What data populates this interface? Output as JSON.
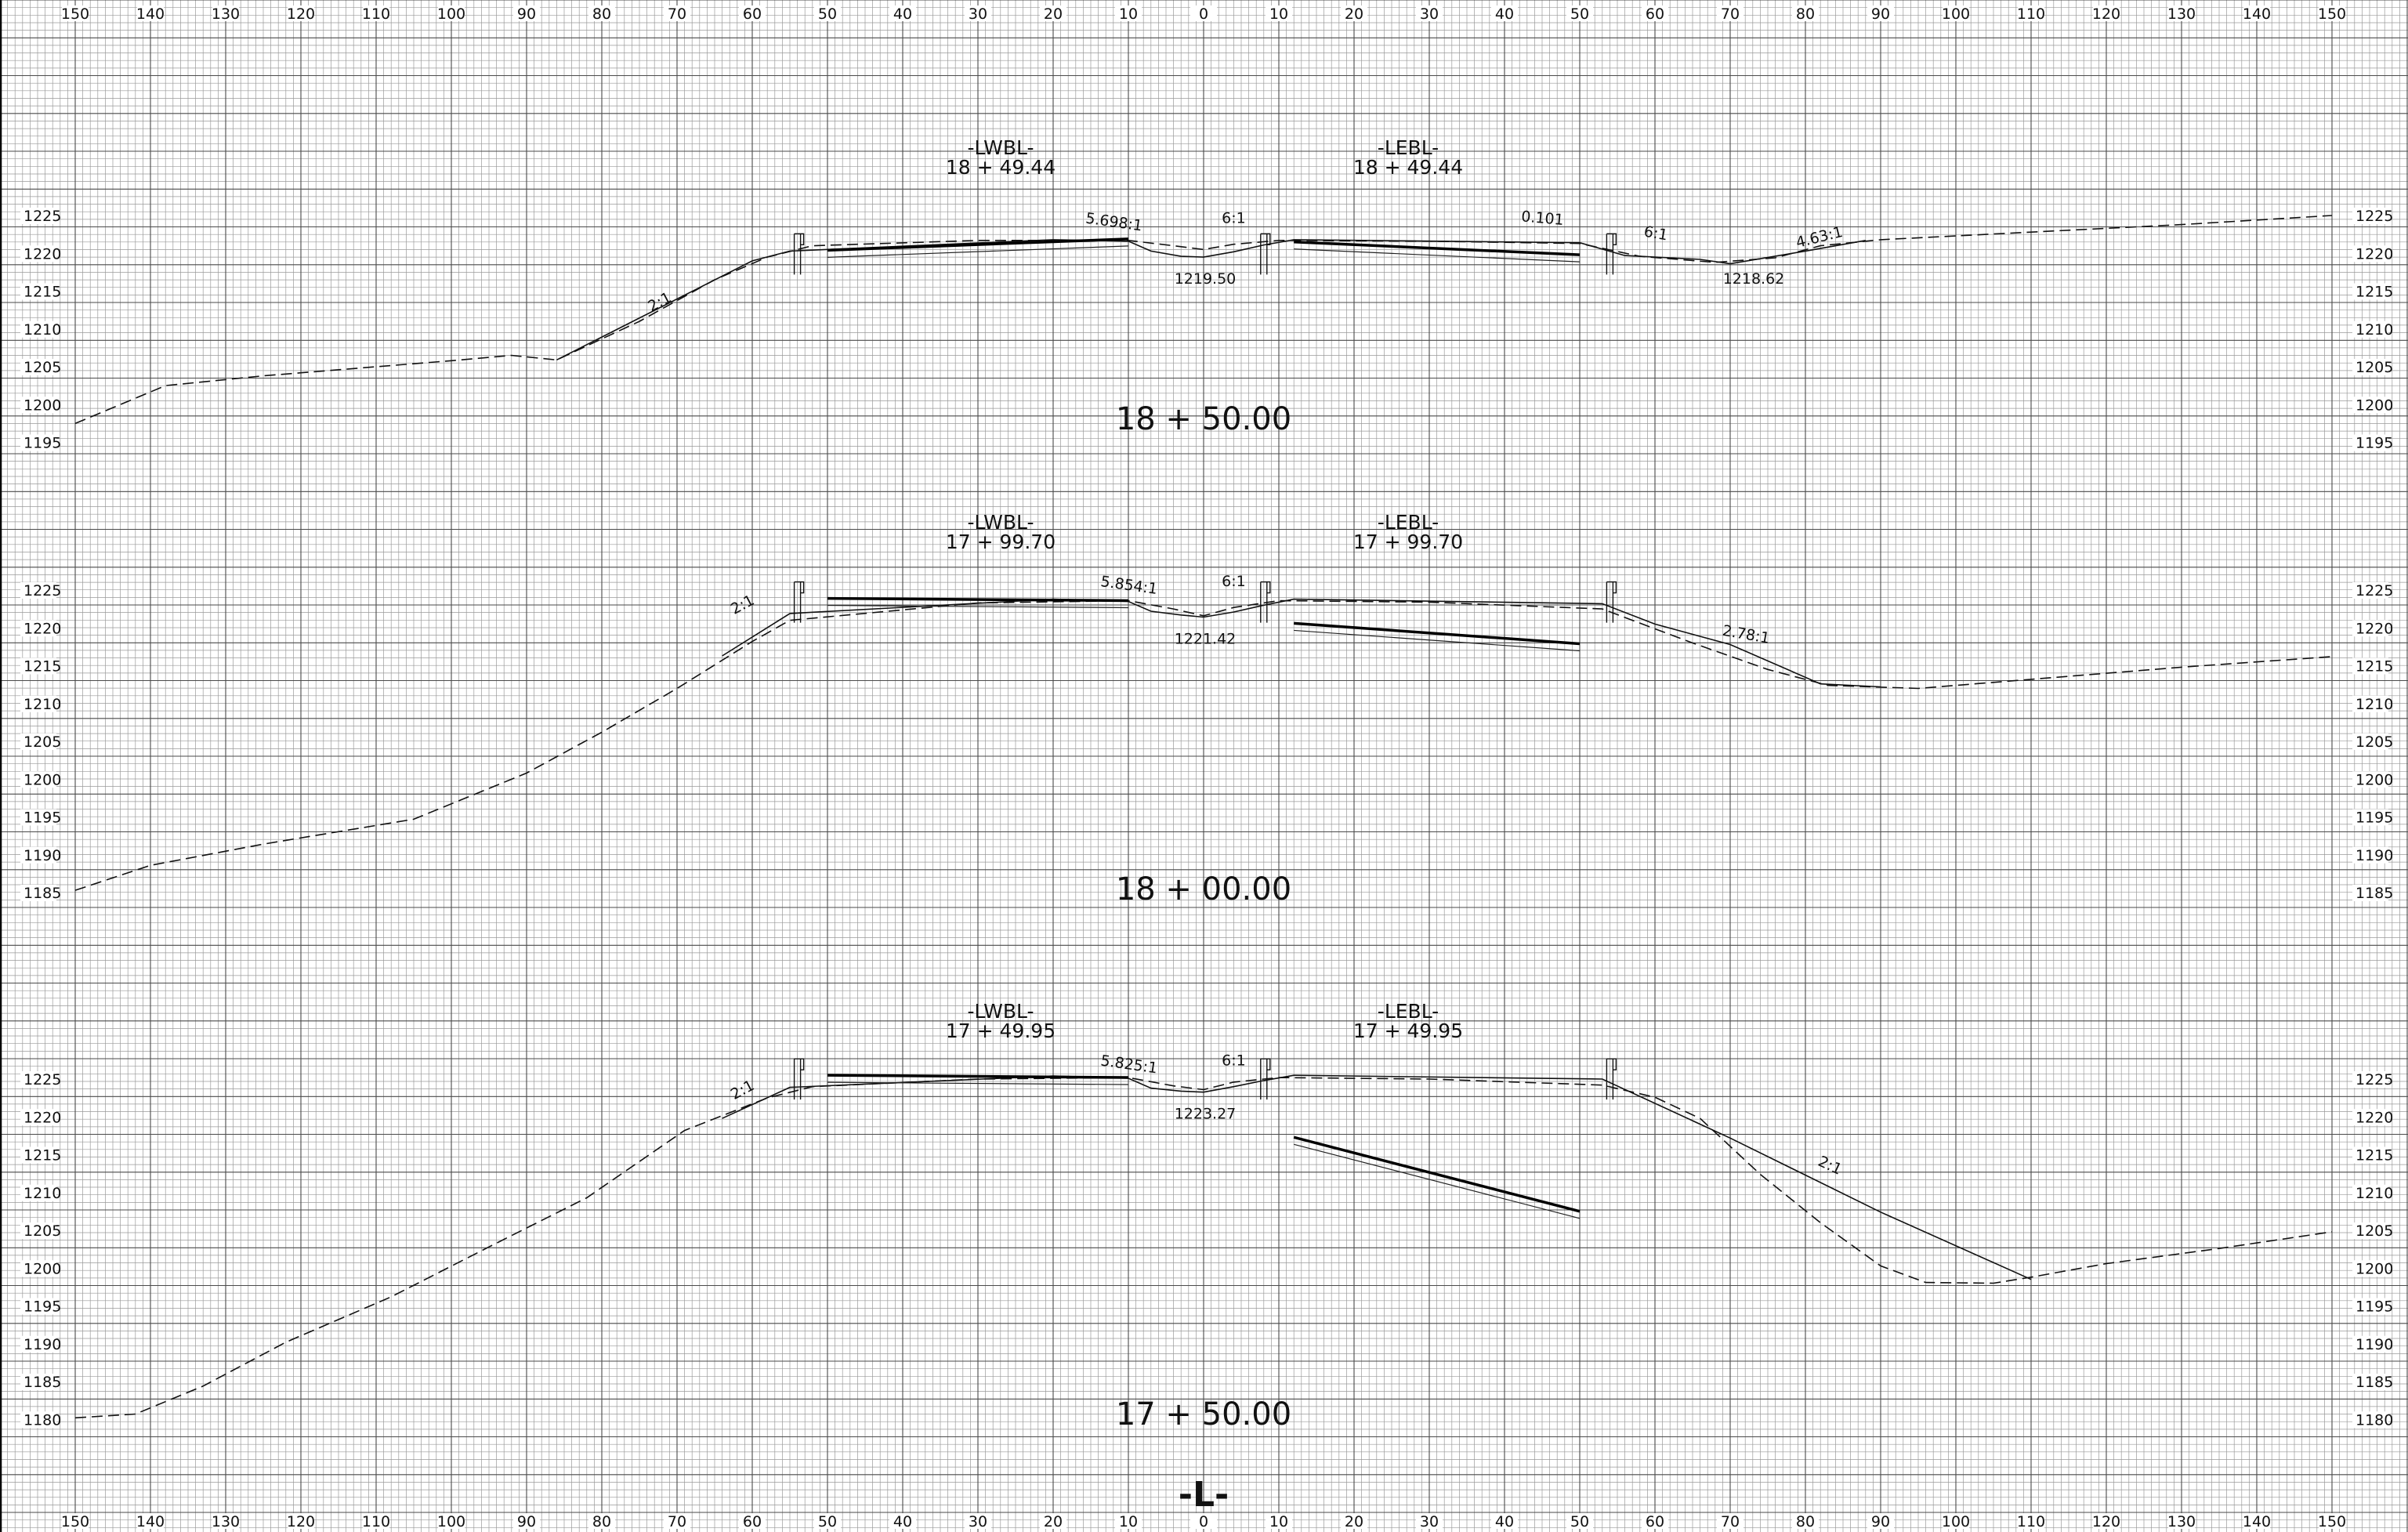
{
  "sheet_label": "-L-",
  "offset_ticks": [
    "150",
    "140",
    "130",
    "120",
    "110",
    "100",
    "90",
    "80",
    "70",
    "60",
    "50",
    "40",
    "30",
    "20",
    "10",
    "0",
    "10",
    "20",
    "30",
    "40",
    "50",
    "60",
    "70",
    "80",
    "90",
    "100",
    "110",
    "120",
    "130",
    "140",
    "150"
  ],
  "sections": [
    {
      "station": "18 + 50.00",
      "elevations": [
        "1225",
        "1220",
        "1215",
        "1210",
        "1205",
        "1200",
        "1195"
      ],
      "left_alignment": {
        "name": "-LWBL-",
        "station": "18 + 49.44"
      },
      "right_alignment": {
        "name": "-LEBL-",
        "station": "18 + 49.44"
      },
      "median_elevation": "1219.50",
      "right_toe_elevation": "1218.62",
      "slope_labels": [
        "2:1",
        "5.698:1",
        "6:1",
        "0.101",
        "6:1",
        "4.63:1"
      ],
      "ground_line": [
        [
          -150,
          1197.5
        ],
        [
          -138,
          1202.5
        ],
        [
          -125,
          1203.8
        ],
        [
          -110,
          1205
        ],
        [
          -100,
          1205.8
        ],
        [
          -92,
          1206.5
        ],
        [
          -86,
          1205.9
        ],
        [
          -75,
          1211
        ],
        [
          -65,
          1216.5
        ],
        [
          -58,
          1219.5
        ],
        [
          -52,
          1221
        ],
        [
          -30,
          1221.7
        ],
        [
          -10,
          1221.7
        ],
        [
          -4,
          1221
        ],
        [
          0,
          1220.5
        ],
        [
          4,
          1221.2
        ],
        [
          10,
          1221.7
        ],
        [
          30,
          1221.6
        ],
        [
          50,
          1221.3
        ],
        [
          58,
          1219.6
        ],
        [
          68,
          1218.8
        ],
        [
          76,
          1219.4
        ],
        [
          82,
          1221
        ],
        [
          90,
          1221.8
        ],
        [
          110,
          1222.8
        ],
        [
          130,
          1223.8
        ],
        [
          150,
          1225
        ]
      ],
      "design_line": [
        [
          -86,
          1205.9
        ],
        [
          -60,
          1219
        ],
        [
          -55,
          1220.3
        ],
        [
          -20,
          1221.8
        ],
        [
          -10,
          1221.6
        ],
        [
          -7,
          1220.3
        ],
        [
          -3,
          1219.6
        ],
        [
          0,
          1219.5
        ],
        [
          4,
          1220.2
        ],
        [
          8,
          1221.1
        ],
        [
          12,
          1221.8
        ],
        [
          50,
          1221.4
        ],
        [
          56,
          1219.7
        ],
        [
          66,
          1219.2
        ],
        [
          70,
          1218.62
        ],
        [
          80,
          1220.3
        ],
        [
          88,
          1221.7
        ]
      ]
    },
    {
      "station": "18 + 00.00",
      "elevations": [
        "1225",
        "1220",
        "1215",
        "1210",
        "1205",
        "1200",
        "1195",
        "1190",
        "1185"
      ],
      "left_alignment": {
        "name": "-LWBL-",
        "station": "17 + 99.70"
      },
      "right_alignment": {
        "name": "-LEBL-",
        "station": "17 + 99.70"
      },
      "median_elevation": "1221.42",
      "slope_labels": [
        "2:1",
        "5.854:1",
        "6:1",
        "2.78:1"
      ],
      "ground_line": [
        [
          -150,
          1185.3
        ],
        [
          -140,
          1188.6
        ],
        [
          -125,
          1191.4
        ],
        [
          -105,
          1194.7
        ],
        [
          -90,
          1200.8
        ],
        [
          -80,
          1206.2
        ],
        [
          -70,
          1212
        ],
        [
          -60,
          1218.2
        ],
        [
          -55,
          1221
        ],
        [
          -30,
          1223.3
        ],
        [
          -10,
          1223.6
        ],
        [
          -4,
          1222.5
        ],
        [
          0,
          1221.6
        ],
        [
          4,
          1222.7
        ],
        [
          10,
          1223.6
        ],
        [
          30,
          1223.4
        ],
        [
          53,
          1222.5
        ],
        [
          65,
          1218
        ],
        [
          75,
          1214.5
        ],
        [
          83,
          1212.4
        ],
        [
          95,
          1212
        ],
        [
          110,
          1213.2
        ],
        [
          130,
          1214.8
        ],
        [
          150,
          1216.2
        ]
      ],
      "design_line": [
        [
          -64,
          1216.3
        ],
        [
          -55,
          1221.9
        ],
        [
          -20,
          1223.8
        ],
        [
          -10,
          1223.5
        ],
        [
          -7,
          1222.2
        ],
        [
          -3,
          1221.7
        ],
        [
          0,
          1221.42
        ],
        [
          4,
          1222.1
        ],
        [
          8,
          1223
        ],
        [
          12,
          1223.8
        ],
        [
          53,
          1223.2
        ],
        [
          60,
          1220.5
        ],
        [
          70,
          1217.8
        ],
        [
          82,
          1212.6
        ],
        [
          90,
          1212.2
        ]
      ]
    },
    {
      "station": "17 + 50.00",
      "elevations": [
        "1225",
        "1220",
        "1215",
        "1210",
        "1205",
        "1200",
        "1195",
        "1190",
        "1185",
        "1180"
      ],
      "left_alignment": {
        "name": "-LWBL-",
        "station": "17 + 49.95"
      },
      "right_alignment": {
        "name": "-LEBL-",
        "station": "17 + 49.95"
      },
      "median_elevation": "1223.27",
      "slope_labels": [
        "2:1",
        "5.825:1",
        "6:1",
        "2:1"
      ],
      "ground_line": [
        [
          -150,
          1180.2
        ],
        [
          -142,
          1180.7
        ],
        [
          -133,
          1184.4
        ],
        [
          -122,
          1190.2
        ],
        [
          -108,
          1196.2
        ],
        [
          -95,
          1202.8
        ],
        [
          -82,
          1209.3
        ],
        [
          -69,
          1218.2
        ],
        [
          -58,
          1222.5
        ],
        [
          -52,
          1224
        ],
        [
          -30,
          1225
        ],
        [
          -10,
          1225.2
        ],
        [
          -4,
          1224.1
        ],
        [
          0,
          1223.6
        ],
        [
          4,
          1224.6
        ],
        [
          10,
          1225.2
        ],
        [
          30,
          1225
        ],
        [
          53,
          1224.2
        ],
        [
          60,
          1222.6
        ],
        [
          66,
          1219.8
        ],
        [
          74,
          1212.4
        ],
        [
          82,
          1206
        ],
        [
          90,
          1200.3
        ],
        [
          96,
          1198.1
        ],
        [
          105,
          1198
        ],
        [
          110,
          1198.8
        ],
        [
          120,
          1200.6
        ],
        [
          135,
          1202.6
        ],
        [
          150,
          1204.8
        ]
      ],
      "design_line": [
        [
          -64,
          1219.8
        ],
        [
          -55,
          1223.9
        ],
        [
          -20,
          1225.4
        ],
        [
          -10,
          1225.1
        ],
        [
          -7,
          1223.8
        ],
        [
          -3,
          1223.4
        ],
        [
          0,
          1223.27
        ],
        [
          4,
          1224
        ],
        [
          8,
          1224.8
        ],
        [
          12,
          1225.5
        ],
        [
          53,
          1225
        ],
        [
          70,
          1217.2
        ],
        [
          90,
          1207.4
        ],
        [
          110,
          1198.5
        ]
      ]
    }
  ]
}
